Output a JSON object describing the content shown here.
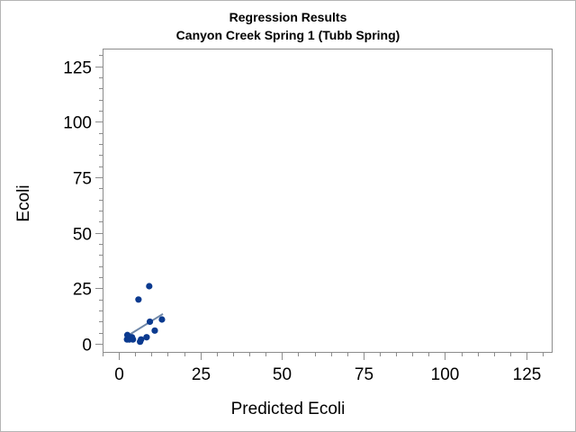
{
  "chart_data": {
    "type": "scatter",
    "title": "Regression Results",
    "subtitle": "Canyon Creek Spring 1 (Tubb Spring)",
    "xlabel": "Predicted Ecoli",
    "ylabel": "Ecoli",
    "xlim": [
      -5,
      133
    ],
    "ylim": [
      -4,
      133
    ],
    "x_ticks": [
      0,
      25,
      50,
      75,
      100,
      125
    ],
    "y_ticks": [
      0,
      25,
      50,
      75,
      100,
      125
    ],
    "minor_tick_step": 5,
    "grid": false,
    "legend": "none",
    "points": [
      {
        "x": 2.5,
        "y": 2
      },
      {
        "x": 2.6,
        "y": 4
      },
      {
        "x": 3.2,
        "y": 2
      },
      {
        "x": 4.0,
        "y": 3
      },
      {
        "x": 4.3,
        "y": 2
      },
      {
        "x": 6.0,
        "y": 20
      },
      {
        "x": 6.5,
        "y": 1
      },
      {
        "x": 6.8,
        "y": 2
      },
      {
        "x": 8.5,
        "y": 3
      },
      {
        "x": 9.3,
        "y": 26
      },
      {
        "x": 9.5,
        "y": 10
      },
      {
        "x": 11.0,
        "y": 6
      },
      {
        "x": 13.2,
        "y": 11
      }
    ],
    "fit_line": {
      "x": [
        2.5,
        13.5
      ],
      "y": [
        3.5,
        13.5
      ]
    },
    "colors": {
      "marker": "#0b3a8f",
      "fit_line": "#6f87a8",
      "frame": "#8c8c8c",
      "axis_text": "#000000"
    }
  }
}
